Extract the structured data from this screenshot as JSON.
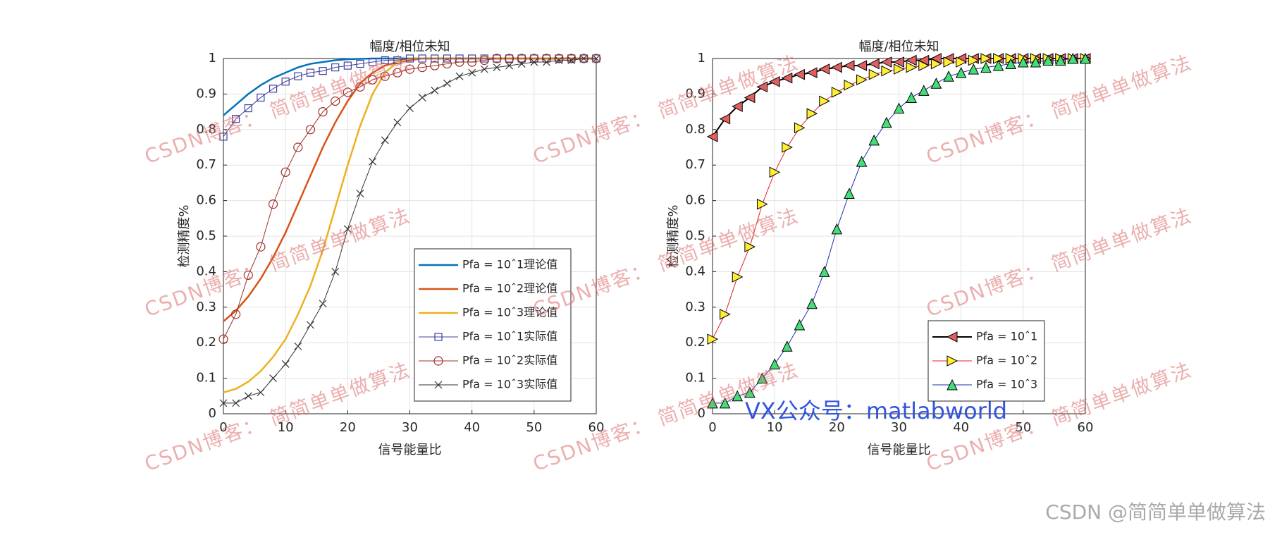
{
  "chart_data": [
    {
      "type": "line",
      "title": "幅度/相位未知",
      "xlabel": "信号能量比",
      "ylabel": "检测精度%",
      "x": [
        0,
        2,
        4,
        6,
        8,
        10,
        12,
        14,
        16,
        18,
        20,
        22,
        24,
        26,
        28,
        30,
        32,
        34,
        36,
        38,
        40,
        42,
        44,
        46,
        48,
        50,
        52,
        54,
        56,
        58,
        60
      ],
      "xlim": [
        0,
        60
      ],
      "ylim": [
        0,
        1
      ],
      "xticks": [
        0,
        10,
        20,
        30,
        40,
        50,
        60
      ],
      "yticks": [
        0,
        0.1,
        0.2,
        0.3,
        0.4,
        0.5,
        0.6,
        0.7,
        0.8,
        0.9,
        1
      ],
      "grid": true,
      "legend": "lower right",
      "series": [
        {
          "name": "Pfa = 10ˆ1理论值",
          "color": "#0072BD",
          "marker": "none",
          "line_width": 2.5,
          "values": [
            0.84,
            0.87,
            0.9,
            0.925,
            0.945,
            0.96,
            0.975,
            0.985,
            0.99,
            0.995,
            0.998,
            0.999,
            1,
            1,
            1,
            1,
            1,
            1,
            1,
            1,
            1,
            1,
            1,
            1,
            1,
            1,
            1,
            1,
            1,
            1,
            1
          ]
        },
        {
          "name": "Pfa = 10ˆ2理论值",
          "color": "#D95319",
          "marker": "none",
          "line_width": 2.5,
          "values": [
            0.26,
            0.29,
            0.33,
            0.38,
            0.44,
            0.51,
            0.59,
            0.67,
            0.75,
            0.82,
            0.88,
            0.93,
            0.96,
            0.98,
            0.99,
            0.995,
            1,
            1,
            1,
            1,
            1,
            1,
            1,
            1,
            1,
            1,
            1,
            1,
            1,
            1,
            1
          ]
        },
        {
          "name": "Pfa = 10ˆ3理论值",
          "color": "#EDB120",
          "marker": "none",
          "line_width": 2.5,
          "values": [
            0.06,
            0.07,
            0.09,
            0.12,
            0.16,
            0.21,
            0.28,
            0.36,
            0.46,
            0.58,
            0.7,
            0.81,
            0.9,
            0.96,
            0.99,
            1,
            1,
            1,
            1,
            1,
            1,
            1,
            1,
            1,
            1,
            1,
            1,
            1,
            1,
            1,
            1
          ]
        },
        {
          "name": "Pfa = 10ˆ1实际值",
          "color": "#3F3F9F",
          "marker": "square",
          "marker_fill": "none",
          "line_width": 1,
          "values": [
            0.78,
            0.83,
            0.86,
            0.89,
            0.915,
            0.935,
            0.95,
            0.96,
            0.965,
            0.975,
            0.98,
            0.985,
            0.99,
            0.995,
            0.995,
            1,
            1,
            1,
            1,
            1,
            1,
            1,
            1,
            1,
            1,
            1,
            1,
            1,
            1,
            1,
            1
          ]
        },
        {
          "name": "Pfa = 10ˆ2实际值",
          "color": "#A0302A",
          "marker": "circle",
          "marker_fill": "none",
          "line_width": 1,
          "values": [
            0.21,
            0.28,
            0.39,
            0.47,
            0.59,
            0.68,
            0.75,
            0.8,
            0.85,
            0.88,
            0.905,
            0.92,
            0.94,
            0.95,
            0.96,
            0.97,
            0.975,
            0.98,
            0.985,
            0.99,
            0.99,
            0.995,
            1,
            1,
            1,
            1,
            1,
            1,
            1,
            1,
            1
          ]
        },
        {
          "name": "Pfa = 10ˆ3实际值",
          "color": "#333333",
          "marker": "x",
          "marker_fill": "none",
          "line_width": 1,
          "values": [
            0.03,
            0.03,
            0.05,
            0.06,
            0.1,
            0.14,
            0.19,
            0.25,
            0.31,
            0.4,
            0.52,
            0.62,
            0.71,
            0.77,
            0.82,
            0.86,
            0.89,
            0.91,
            0.93,
            0.95,
            0.96,
            0.97,
            0.975,
            0.98,
            0.985,
            0.99,
            0.99,
            0.995,
            0.995,
            1,
            1
          ]
        }
      ]
    },
    {
      "type": "line",
      "title": "幅度/相位未知",
      "xlabel": "信号能量比",
      "ylabel": "检测精度%",
      "x": [
        0,
        2,
        4,
        6,
        8,
        10,
        12,
        14,
        16,
        18,
        20,
        22,
        24,
        26,
        28,
        30,
        32,
        34,
        36,
        38,
        40,
        42,
        44,
        46,
        48,
        50,
        52,
        54,
        56,
        58,
        60
      ],
      "xlim": [
        0,
        60
      ],
      "ylim": [
        0,
        1
      ],
      "xticks": [
        0,
        10,
        20,
        30,
        40,
        50,
        60
      ],
      "yticks": [
        0,
        0.1,
        0.2,
        0.3,
        0.4,
        0.5,
        0.6,
        0.7,
        0.8,
        0.9,
        1
      ],
      "grid": true,
      "legend": "lower right",
      "series": [
        {
          "name": "Pfa = 10ˆ1",
          "color": "#000000",
          "marker": "triangle-left",
          "marker_fill": "#E06060",
          "line_width": 2,
          "values": [
            0.78,
            0.83,
            0.865,
            0.89,
            0.92,
            0.935,
            0.945,
            0.955,
            0.96,
            0.97,
            0.975,
            0.98,
            0.98,
            0.985,
            0.99,
            0.99,
            0.995,
            0.995,
            1,
            1,
            1,
            1,
            1,
            1,
            1,
            1,
            1,
            1,
            1,
            1,
            1
          ]
        },
        {
          "name": "Pfa = 10ˆ2",
          "color": "#DD2222",
          "marker": "triangle-right",
          "marker_fill": "#FFEE33",
          "line_width": 1,
          "values": [
            0.21,
            0.28,
            0.385,
            0.47,
            0.59,
            0.68,
            0.75,
            0.805,
            0.845,
            0.88,
            0.905,
            0.925,
            0.94,
            0.955,
            0.965,
            0.97,
            0.975,
            0.98,
            0.985,
            0.99,
            0.99,
            0.995,
            1,
            1,
            1,
            1,
            1,
            1,
            1,
            1,
            1
          ]
        },
        {
          "name": "Pfa = 10ˆ3",
          "color": "#1A2FA8",
          "marker": "triangle-up",
          "marker_fill": "#44DD77",
          "line_width": 1,
          "values": [
            0.03,
            0.03,
            0.05,
            0.06,
            0.1,
            0.14,
            0.19,
            0.25,
            0.31,
            0.4,
            0.52,
            0.62,
            0.71,
            0.77,
            0.82,
            0.86,
            0.89,
            0.91,
            0.93,
            0.95,
            0.96,
            0.97,
            0.975,
            0.98,
            0.985,
            0.99,
            0.99,
            0.995,
            0.995,
            1,
            1
          ]
        }
      ]
    }
  ],
  "watermark": "CSDN博客：  简简单单做算法",
  "wechat_note": "VX公众号：matlabworld",
  "credit": "CSDN @简简单单做算法"
}
